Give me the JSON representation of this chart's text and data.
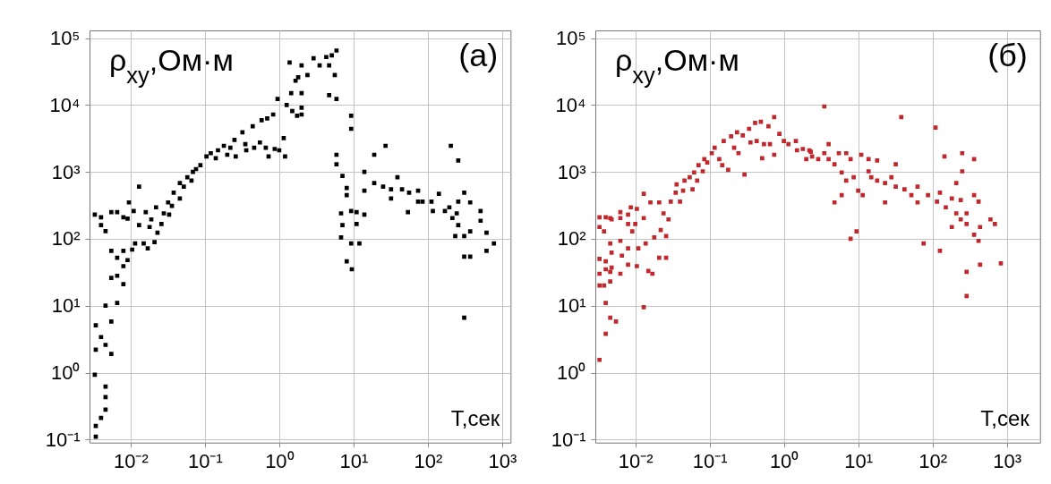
{
  "chart_data": [
    {
      "type": "scatter",
      "title": "(a)",
      "xlabel": "T,сек",
      "ylabel": "ρ$_{xy}$,Ом·м",
      "log": "xy",
      "grid": true,
      "marker": "square",
      "xlim": [
        0.0028,
        1300
      ],
      "ylim": [
        0.09,
        130000
      ],
      "xticks": [
        {
          "value": 0.01,
          "label": "10⁻²"
        },
        {
          "value": 0.1,
          "label": "10⁻¹"
        },
        {
          "value": 1,
          "label": "10⁰"
        },
        {
          "value": 10,
          "label": "10¹"
        },
        {
          "value": 100,
          "label": "10²"
        },
        {
          "value": 1000,
          "label": "10³"
        }
      ],
      "yticks": [
        {
          "value": 0.1,
          "label": "10⁻¹"
        },
        {
          "value": 1,
          "label": "10⁰"
        },
        {
          "value": 10,
          "label": "10¹"
        },
        {
          "value": 100,
          "label": "10²"
        },
        {
          "value": 1000,
          "label": "10³"
        },
        {
          "value": 10000,
          "label": "10⁴"
        },
        {
          "value": 100000,
          "label": "10⁵"
        }
      ],
      "series": [
        {
          "color": "#000000",
          "x": [
            0.0033,
            0.0034,
            0.0034,
            0.0034,
            0.0034,
            0.0033,
            0.004,
            0.004,
            0.0046,
            0.004,
            0.004,
            0.0046,
            0.0046,
            0.0046,
            0.0046,
            0.0046,
            0.0055,
            0.0055,
            0.0055,
            0.0055,
            0.0055,
            0.0066,
            0.0066,
            0.0066,
            0.0066,
            0.008,
            0.008,
            0.008,
            0.008,
            0.0091,
            0.0091,
            0.0095,
            0.0105,
            0.011,
            0.0115,
            0.013,
            0.013,
            0.015,
            0.016,
            0.017,
            0.018,
            0.019,
            0.021,
            0.022,
            0.023,
            0.026,
            0.028,
            0.032,
            0.033,
            0.036,
            0.038,
            0.046,
            0.046,
            0.052,
            0.058,
            0.066,
            0.069,
            0.076,
            0.087,
            0.105,
            0.12,
            0.14,
            0.15,
            0.18,
            0.2,
            0.22,
            0.25,
            0.26,
            0.32,
            0.35,
            0.36,
            0.44,
            0.46,
            0.55,
            0.58,
            0.66,
            0.69,
            0.72,
            0.83,
            0.87,
            0.95,
            1.0,
            1.15,
            1.2,
            1.26,
            1.38,
            1.45,
            1.5,
            1.66,
            1.74,
            2.0,
            2.0,
            1.8,
            2.0,
            2.4,
            2.9,
            3.5,
            4.3,
            4.7,
            5.1,
            5.6,
            5.9,
            4.7,
            5.9,
            2.0,
            5.9,
            5.9,
            7.1,
            8.1,
            8.1,
            6.8,
            7.1,
            6.8,
            8.1,
            9.3,
            9.3,
            9.3,
            9.3,
            9.5,
            11,
            12,
            11,
            14,
            14,
            14,
            19,
            19,
            27,
            25,
            32,
            32,
            39,
            45,
            54,
            56,
            74,
            74,
            85,
            112,
            117,
            141,
            170,
            204,
            214,
            234,
            257,
            257,
            257,
            309,
            309,
            309,
            309,
            372,
            372,
            372,
            513,
            513,
            617,
            617,
            776,
            245,
            195
          ],
          "values": [
            0.93,
            2.2,
            5.1,
            0.16,
            0.11,
            230,
            210,
            160,
            130,
            0.21,
            3.4,
            2.6,
            10,
            0.62,
            0.43,
            0.28,
            5.8,
            1.9,
            26,
            66,
            250,
            11,
            28,
            52,
            250,
            21,
            39,
            66,
            210,
            200,
            48,
            350,
            69,
            260,
            85,
            160,
            600,
            85,
            250,
            72,
            150,
            195,
            89,
            295,
            123,
            166,
            240,
            350,
            230,
            310,
            490,
            400,
            680,
            600,
            830,
            740,
            1000,
            1100,
            1260,
            1700,
            1900,
            1600,
            2100,
            2450,
            1800,
            2300,
            3000,
            1700,
            3900,
            2600,
            2100,
            4800,
            2300,
            2750,
            5900,
            2300,
            6300,
            1700,
            7200,
            2200,
            12300,
            2100,
            3200,
            1700,
            10000,
            43000,
            15000,
            8100,
            23000,
            6900,
            39000,
            9100,
            26000,
            15000,
            28000,
            50000,
            39000,
            52000,
            39000,
            55000,
            28000,
            65000,
            14000,
            12300,
            7200,
            1800,
            1300,
            870,
            575,
            450,
            240,
            160,
            105,
            46,
            6900,
            4400,
            260,
            85,
            35,
            250,
            85,
            166,
            230,
            1000,
            525,
            1800,
            680,
            2450,
            600,
            400,
            550,
            830,
            550,
            250,
            490,
            525,
            360,
            360,
            360,
            260,
            470,
            260,
            2450,
            204,
            110,
            1480,
            360,
            160,
            490,
            110,
            54,
            6.6,
            129,
            54,
            350,
            260,
            186,
            123,
            66,
            85,
            240,
            295
          ]
        }
      ]
    },
    {
      "type": "scatter",
      "title": "(б)",
      "xlabel": "T,сек",
      "ylabel": "ρ$_{xy}$,Ом·м",
      "log": "xy",
      "grid": true,
      "marker": "square",
      "xlim": [
        0.0029,
        2800
      ],
      "ylim": [
        0.09,
        130000
      ],
      "xticks": [
        {
          "value": 0.01,
          "label": "10⁻²"
        },
        {
          "value": 0.1,
          "label": "10⁻¹"
        },
        {
          "value": 1,
          "label": "10⁰"
        },
        {
          "value": 10,
          "label": "10¹"
        },
        {
          "value": 100,
          "label": "10²"
        },
        {
          "value": 1000,
          "label": "10³"
        }
      ],
      "yticks": [
        {
          "value": 0.1,
          "label": "10⁻¹"
        },
        {
          "value": 1,
          "label": "10⁰"
        },
        {
          "value": 10,
          "label": "10¹"
        },
        {
          "value": 100,
          "label": "10²"
        },
        {
          "value": 1000,
          "label": "10³"
        },
        {
          "value": 10000,
          "label": "10⁴"
        },
        {
          "value": 100000,
          "label": "10⁵"
        }
      ],
      "series": [
        {
          "color": "#c0282d",
          "x": [
            0.0033,
            0.004,
            0.004,
            0.0046,
            0.0055,
            0.0033,
            0.0038,
            0.0046,
            0.0033,
            0.004,
            0.0046,
            0.0033,
            0.004,
            0.0048,
            0.0033,
            0.0038,
            0.0033,
            0.004,
            0.0046,
            0.0046,
            0.0048,
            0.0048,
            0.0063,
            0.0063,
            0.0063,
            0.0063,
            0.0066,
            0.008,
            0.008,
            0.008,
            0.008,
            0.0087,
            0.0091,
            0.01,
            0.0105,
            0.0105,
            0.011,
            0.013,
            0.013,
            0.013,
            0.0138,
            0.015,
            0.016,
            0.017,
            0.018,
            0.021,
            0.021,
            0.022,
            0.024,
            0.026,
            0.026,
            0.028,
            0.03,
            0.035,
            0.036,
            0.04,
            0.044,
            0.046,
            0.054,
            0.059,
            0.062,
            0.068,
            0.071,
            0.081,
            0.085,
            0.093,
            0.107,
            0.117,
            0.135,
            0.148,
            0.155,
            0.178,
            0.195,
            0.214,
            0.234,
            0.245,
            0.28,
            0.295,
            0.34,
            0.355,
            0.41,
            0.43,
            0.49,
            0.51,
            0.54,
            0.62,
            0.65,
            0.74,
            0.74,
            0.87,
            1.0,
            1.15,
            1.45,
            1.5,
            1.8,
            2.0,
            2.3,
            2.2,
            2.4,
            3.5,
            2.9,
            3.5,
            4.0,
            4.0,
            4.8,
            4.8,
            5.5,
            6.0,
            6.0,
            6.9,
            6.9,
            7.9,
            7.9,
            8.7,
            9.5,
            10,
            11,
            11.5,
            13.8,
            13.8,
            15,
            18,
            18,
            23,
            23,
            28,
            32,
            32,
            38,
            42,
            52,
            63,
            63,
            76,
            87,
            110,
            115,
            126,
            126,
            145,
            151,
            182,
            182,
            209,
            209,
            240,
            240,
            251,
            251,
            288,
            288,
            288,
            288,
            363,
            363,
            363,
            417,
            417,
            437,
            437,
            603,
            692,
            832
          ],
          "values": [
            1.55,
            3.8,
            11,
            6.6,
            5.8,
            20,
            20,
            23,
            30,
            35,
            32,
            50,
            46,
            37,
            150,
            129,
            210,
            210,
            204,
            85,
            62,
            195,
            250,
            30,
            204,
            93,
            56,
            230,
            166,
            72,
            41,
            295,
            129,
            166,
            280,
            39,
            72,
            470,
            204,
            9.5,
            85,
            33,
            350,
            30,
            105,
            350,
            52,
            135,
            240,
            52,
            110,
            195,
            360,
            490,
            650,
            360,
            525,
            740,
            830,
            550,
            980,
            740,
            1260,
            1020,
            1550,
            1380,
            1900,
            2300,
            1550,
            1260,
            2900,
            1070,
            3400,
            2300,
            3900,
            1900,
            3500,
            910,
            4400,
            2750,
            5400,
            2900,
            5600,
            1600,
            2600,
            4800,
            2600,
            6600,
            1800,
            3700,
            2900,
            2600,
            2900,
            2100,
            2200,
            1550,
            2000,
            2100,
            1700,
            9500,
            1550,
            1900,
            2600,
            1550,
            1300,
            350,
            1900,
            980,
            450,
            1900,
            740,
            1550,
            100,
            830,
            129,
            525,
            1800,
            450,
            1550,
            1020,
            830,
            1480,
            740,
            680,
            350,
            830,
            1300,
            600,
            6600,
            550,
            450,
            600,
            350,
            85,
            450,
            4600,
            360,
            490,
            66,
            1700,
            295,
            400,
            150,
            680,
            240,
            380,
            195,
            1900,
            1020,
            166,
            240,
            32,
            14,
            1550,
            450,
            115,
            93,
            360,
            150,
            41,
            195,
            166,
            43
          ]
        }
      ]
    }
  ]
}
